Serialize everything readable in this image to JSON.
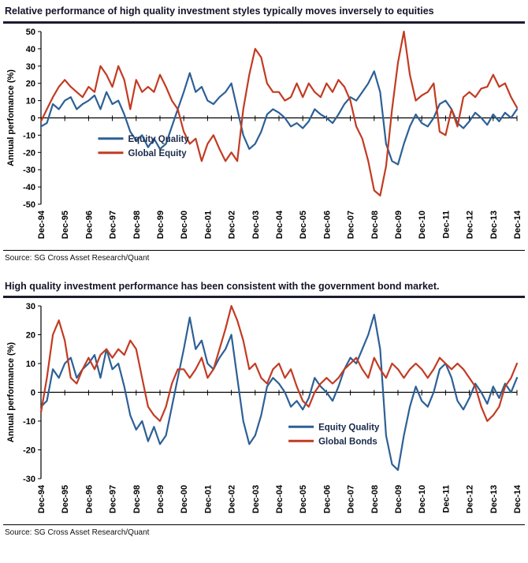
{
  "colors": {
    "equity_quality_blue": "#2d6096",
    "global_equity_red": "#c23b22",
    "axis_black": "#000000",
    "title_navy": "#141428"
  },
  "chart_data": [
    {
      "type": "line",
      "title": "Relative performance of high quality investment styles typically moves inversely to equities",
      "source": "Source: SG Cross Asset Research/Quant",
      "ylabel": "Annual perfomance (%)",
      "xlabel": "",
      "ylim": [
        -50,
        50
      ],
      "ytick_step": 10,
      "grid": false,
      "legend_position": "inside-left-lower",
      "legend_pos": {
        "fx": 0.12,
        "fy": 0.62
      },
      "x_labels": [
        "Dec-94",
        "Dec-95",
        "Dec-96",
        "Dec-97",
        "Dec-98",
        "Dec-99",
        "Dec-00",
        "Dec-01",
        "Dec-02",
        "Dec-03",
        "Dec-04",
        "Dec-05",
        "Dec-06",
        "Dec-07",
        "Dec-08",
        "Dec-09",
        "Dec-10",
        "Dec-11",
        "Dec-12",
        "Dec-13",
        "Dec-14"
      ],
      "x_resolution": "quarterly",
      "series": [
        {
          "name": "Equity Quality",
          "color": "#2d6096",
          "values": [
            -5,
            -3,
            8,
            5,
            10,
            12,
            5,
            8,
            10,
            13,
            5,
            15,
            8,
            10,
            2,
            -8,
            -13,
            -10,
            -17,
            -12,
            -18,
            -15,
            -5,
            5,
            15,
            26,
            15,
            18,
            10,
            8,
            12,
            15,
            20,
            5,
            -10,
            -18,
            -15,
            -8,
            2,
            5,
            3,
            0,
            -5,
            -3,
            -6,
            -2,
            5,
            2,
            0,
            -3,
            2,
            8,
            12,
            10,
            15,
            20,
            27,
            15,
            -15,
            -25,
            -27,
            -15,
            -5,
            2,
            -3,
            -5,
            0,
            8,
            10,
            5,
            -3,
            -6,
            -2,
            3,
            0,
            -4,
            2,
            -2,
            3,
            0,
            5
          ]
        },
        {
          "name": "Global Equity",
          "color": "#c23b22",
          "values": [
            -2,
            5,
            12,
            18,
            22,
            18,
            15,
            12,
            18,
            15,
            30,
            25,
            18,
            30,
            22,
            5,
            22,
            15,
            18,
            15,
            25,
            18,
            10,
            5,
            -8,
            -15,
            -12,
            -25,
            -15,
            -10,
            -18,
            -25,
            -20,
            -25,
            5,
            25,
            40,
            35,
            20,
            15,
            15,
            10,
            12,
            20,
            12,
            20,
            15,
            12,
            20,
            15,
            22,
            18,
            10,
            -5,
            -12,
            -25,
            -42,
            -45,
            -28,
            5,
            32,
            50,
            25,
            10,
            13,
            15,
            20,
            -8,
            -10,
            5,
            -5,
            12,
            15,
            12,
            17,
            18,
            25,
            18,
            20,
            12,
            6
          ]
        }
      ]
    },
    {
      "type": "line",
      "title": "High quality investment performance has been consistent with the government bond market.",
      "source": "Source: SG Cross Asset Research/Quant",
      "ylabel": "Annual performance (%)",
      "xlabel": "",
      "ylim": [
        -30,
        30
      ],
      "ytick_step": 10,
      "grid": false,
      "legend_position": "inside-right-lower",
      "legend_pos": {
        "fx": 0.52,
        "fy": 0.7
      },
      "x_labels": [
        "Dec-94",
        "Dec-95",
        "Dec-96",
        "Dec-97",
        "Dec-98",
        "Dec-99",
        "Dec-00",
        "Dec-01",
        "Dec-02",
        "Dec-03",
        "Dec-04",
        "Dec-05",
        "Dec-06",
        "Dec-07",
        "Dec-08",
        "Dec-09",
        "Dec-10",
        "Dec-11",
        "Dec-12",
        "Dec-13",
        "Dec-14"
      ],
      "x_resolution": "quarterly",
      "series": [
        {
          "name": "Equity Quality",
          "color": "#2d6096",
          "values": [
            -5,
            -3,
            8,
            5,
            10,
            12,
            5,
            8,
            10,
            13,
            5,
            15,
            8,
            10,
            2,
            -8,
            -13,
            -10,
            -17,
            -12,
            -18,
            -15,
            -5,
            5,
            15,
            26,
            15,
            18,
            10,
            8,
            12,
            15,
            20,
            5,
            -10,
            -18,
            -15,
            -8,
            2,
            5,
            3,
            0,
            -5,
            -3,
            -6,
            -2,
            5,
            2,
            0,
            -3,
            2,
            8,
            12,
            10,
            15,
            20,
            27,
            15,
            -15,
            -25,
            -27,
            -15,
            -5,
            2,
            -3,
            -5,
            0,
            8,
            10,
            5,
            -3,
            -6,
            -2,
            3,
            0,
            -4,
            2,
            -2,
            3,
            0,
            5
          ]
        },
        {
          "name": "Global Bonds",
          "color": "#c23b22",
          "values": [
            -7,
            5,
            20,
            25,
            18,
            5,
            3,
            8,
            12,
            8,
            13,
            15,
            12,
            15,
            13,
            18,
            15,
            5,
            -5,
            -8,
            -10,
            -5,
            3,
            8,
            8,
            5,
            8,
            12,
            5,
            8,
            15,
            22,
            30,
            25,
            18,
            8,
            10,
            5,
            3,
            8,
            10,
            5,
            8,
            2,
            -3,
            -5,
            0,
            3,
            5,
            3,
            5,
            8,
            10,
            12,
            8,
            5,
            12,
            8,
            5,
            10,
            8,
            5,
            8,
            10,
            8,
            5,
            8,
            12,
            10,
            8,
            10,
            8,
            5,
            2,
            -5,
            -10,
            -8,
            -5,
            2,
            5,
            10
          ]
        }
      ]
    }
  ]
}
